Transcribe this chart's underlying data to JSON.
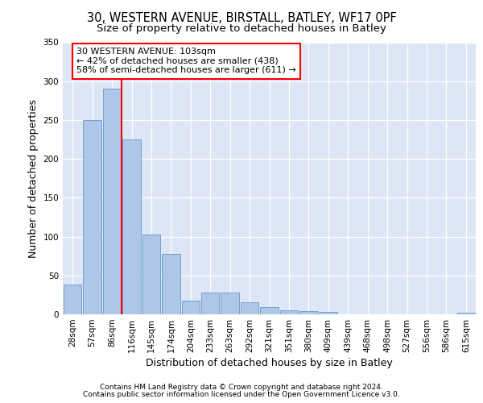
{
  "title1": "30, WESTERN AVENUE, BIRSTALL, BATLEY, WF17 0PF",
  "title2": "Size of property relative to detached houses in Batley",
  "xlabel": "Distribution of detached houses by size in Batley",
  "ylabel": "Number of detached properties",
  "bin_labels": [
    "28sqm",
    "57sqm",
    "86sqm",
    "116sqm",
    "145sqm",
    "174sqm",
    "204sqm",
    "233sqm",
    "263sqm",
    "292sqm",
    "321sqm",
    "351sqm",
    "380sqm",
    "409sqm",
    "439sqm",
    "468sqm",
    "498sqm",
    "527sqm",
    "556sqm",
    "586sqm",
    "615sqm"
  ],
  "bar_values": [
    38,
    250,
    290,
    225,
    103,
    78,
    18,
    28,
    28,
    16,
    9,
    5,
    4,
    3,
    0,
    0,
    0,
    0,
    0,
    0,
    2
  ],
  "bar_color": "#aec6e8",
  "bar_edge_color": "#6699cc",
  "red_line_x": 2.5,
  "annotation_line1": "30 WESTERN AVENUE: 103sqm",
  "annotation_line2": "← 42% of detached houses are smaller (438)",
  "annotation_line3": "58% of semi-detached houses are larger (611) →",
  "bg_color": "#dce6f5",
  "ylim": [
    0,
    350
  ],
  "yticks": [
    0,
    50,
    100,
    150,
    200,
    250,
    300,
    350
  ],
  "footer1": "Contains HM Land Registry data © Crown copyright and database right 2024.",
  "footer2": "Contains public sector information licensed under the Open Government Licence v3.0.",
  "title1_fontsize": 10.5,
  "title2_fontsize": 9.5,
  "tick_fontsize": 7.5,
  "label_fontsize": 9,
  "footer_fontsize": 6.5
}
